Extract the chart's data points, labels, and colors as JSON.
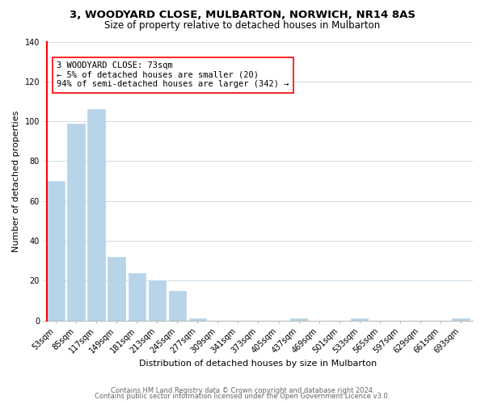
{
  "title_line1": "3, WOODYARD CLOSE, MULBARTON, NORWICH, NR14 8AS",
  "title_line2": "Size of property relative to detached houses in Mulbarton",
  "xlabel": "Distribution of detached houses by size in Mulbarton",
  "ylabel": "Number of detached properties",
  "bin_labels": [
    "53sqm",
    "85sqm",
    "117sqm",
    "149sqm",
    "181sqm",
    "213sqm",
    "245sqm",
    "277sqm",
    "309sqm",
    "341sqm",
    "373sqm",
    "405sqm",
    "437sqm",
    "469sqm",
    "501sqm",
    "533sqm",
    "565sqm",
    "597sqm",
    "629sqm",
    "661sqm",
    "693sqm"
  ],
  "bar_values": [
    70,
    99,
    106,
    32,
    24,
    20,
    15,
    1,
    0,
    0,
    0,
    0,
    1,
    0,
    0,
    1,
    0,
    0,
    0,
    0,
    1
  ],
  "bar_color": "#b8d4e8",
  "annotation_line1": "3 WOODYARD CLOSE: 73sqm",
  "annotation_line2": "← 5% of detached houses are smaller (20)",
  "annotation_line3": "94% of semi-detached houses are larger (342) →",
  "ylim": [
    0,
    140
  ],
  "yticks": [
    0,
    20,
    40,
    60,
    80,
    100,
    120,
    140
  ],
  "footer_line1": "Contains HM Land Registry data © Crown copyright and database right 2024.",
  "footer_line2": "Contains public sector information licensed under the Open Government Licence v3.0.",
  "background_color": "#ffffff",
  "grid_color": "#d0dce8",
  "title_fontsize": 9.5,
  "subtitle_fontsize": 8.5,
  "axis_label_fontsize": 8,
  "tick_fontsize": 7,
  "annotation_fontsize": 7.5,
  "footer_fontsize": 6
}
